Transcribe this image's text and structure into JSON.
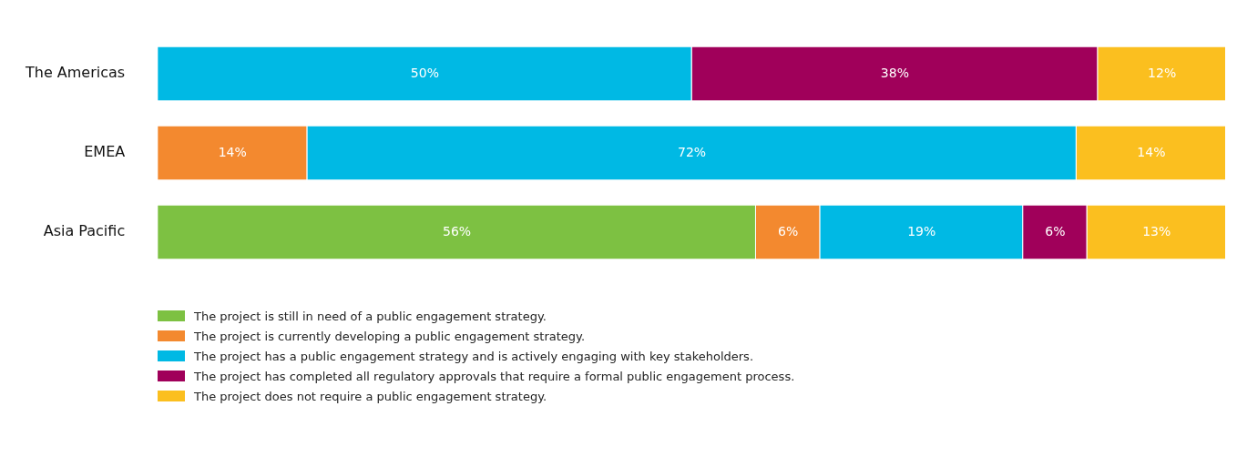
{
  "chart_data": {
    "type": "bar",
    "orientation": "horizontal",
    "stacked": true,
    "legend": "bottom",
    "grid": false,
    "tick_labels": "y",
    "xlim": [
      0,
      100
    ],
    "categories": [
      "The Americas",
      "EMEA",
      "Asia Pacific"
    ],
    "series": [
      {
        "name": "The project is still in need of a public engagement strategy.",
        "color": "#7dc142",
        "values": [
          null,
          null,
          56
        ],
        "value_labels": [
          null,
          null,
          "56%"
        ]
      },
      {
        "name": "The project is currently developing a public engagement strategy.",
        "color": "#f3892f",
        "values": [
          null,
          14,
          6
        ],
        "value_labels": [
          null,
          "14%",
          "6%"
        ]
      },
      {
        "name": "The project has a public engagement strategy and is actively engaging with key stakeholders.",
        "color": "#00b9e4",
        "values": [
          50,
          72,
          19
        ],
        "value_labels": [
          "50%",
          "72%",
          "19%"
        ]
      },
      {
        "name": "The project has completed all regulatory approvals that require a formal public engagement process.",
        "color": "#a0005a",
        "values": [
          38,
          null,
          6
        ],
        "value_labels": [
          "38%",
          null,
          "6%"
        ]
      },
      {
        "name": "The project does not require a public engagement strategy.",
        "color": "#fbbf1f",
        "values": [
          12,
          14,
          13
        ],
        "value_labels": [
          "12%",
          "14%",
          "13%"
        ]
      }
    ]
  }
}
